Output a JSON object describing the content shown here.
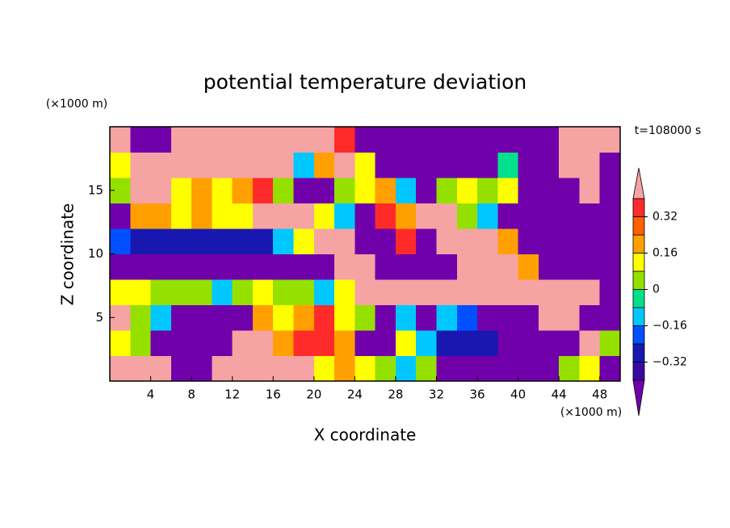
{
  "chart_data": {
    "type": "contour",
    "title": "potential temperature deviation",
    "xlabel": "X coordinate",
    "ylabel": "Z coordinate",
    "x_unit": "(×1000 m)",
    "y_unit": "(×1000 m)",
    "annotation": "t=108000 s",
    "xlim": [
      0,
      50
    ],
    "ylim": [
      0,
      20
    ],
    "xticks": [
      4,
      8,
      12,
      16,
      20,
      24,
      28,
      32,
      36,
      40,
      44,
      48
    ],
    "yticks": [
      5,
      10,
      15
    ],
    "x": [
      1,
      3,
      5,
      7,
      9,
      11,
      13,
      15,
      17,
      19,
      21,
      23,
      25,
      27,
      29,
      31,
      33,
      35,
      37,
      39,
      41,
      43,
      45,
      47,
      49
    ],
    "y": [
      1,
      3,
      5,
      7,
      9,
      11,
      13,
      15,
      17,
      19
    ],
    "values": [
      [
        0.5,
        0.5,
        0.5,
        -0.5,
        -0.5,
        0.5,
        0.5,
        0.5,
        0.5,
        0.5,
        0.12,
        0.2,
        0.12,
        0.04,
        -0.12,
        0.04,
        -0.5,
        -0.5,
        -0.5,
        -0.5,
        -0.5,
        -0.5,
        0.04,
        0.12,
        -0.5
      ],
      [
        0.12,
        0.04,
        -0.5,
        -0.5,
        -0.5,
        -0.5,
        0.5,
        0.5,
        0.2,
        0.36,
        0.36,
        0.2,
        -0.5,
        -0.5,
        0.12,
        -0.12,
        -0.28,
        -0.28,
        -0.28,
        -0.5,
        -0.5,
        -0.5,
        -0.5,
        0.5,
        0.04
      ],
      [
        0.5,
        0.04,
        -0.12,
        -0.5,
        -0.5,
        -0.5,
        -0.5,
        0.2,
        0.12,
        0.2,
        0.36,
        0.12,
        0.04,
        -0.5,
        -0.12,
        -0.5,
        -0.12,
        -0.2,
        -0.5,
        -0.5,
        -0.5,
        0.5,
        0.5,
        -0.5,
        -0.5
      ],
      [
        0.12,
        0.12,
        0.04,
        0.04,
        0.04,
        -0.12,
        0.04,
        0.12,
        0.04,
        0.04,
        -0.12,
        0.12,
        0.5,
        0.5,
        0.5,
        0.5,
        0.5,
        0.5,
        0.5,
        0.5,
        0.5,
        0.5,
        0.5,
        0.5,
        -0.5
      ],
      [
        -0.5,
        -0.5,
        -0.5,
        -0.5,
        -0.5,
        -0.5,
        -0.5,
        -0.5,
        -0.5,
        -0.5,
        -0.5,
        0.5,
        0.5,
        -0.5,
        -0.5,
        -0.5,
        -0.5,
        0.5,
        0.5,
        0.5,
        0.2,
        -0.5,
        -0.5,
        -0.5,
        -0.5
      ],
      [
        -0.2,
        -0.28,
        -0.28,
        -0.28,
        -0.28,
        -0.28,
        -0.28,
        -0.28,
        -0.12,
        0.12,
        0.5,
        0.5,
        -0.5,
        -0.5,
        0.36,
        -0.5,
        0.5,
        0.5,
        0.5,
        0.2,
        -0.5,
        -0.5,
        -0.5,
        -0.5,
        -0.5
      ],
      [
        -0.5,
        0.2,
        0.2,
        0.12,
        0.2,
        0.12,
        0.12,
        0.5,
        0.5,
        0.5,
        0.12,
        -0.12,
        -0.5,
        0.36,
        0.2,
        0.5,
        0.5,
        0.04,
        -0.12,
        -0.5,
        -0.5,
        -0.5,
        -0.5,
        -0.5,
        -0.5
      ],
      [
        0.04,
        0.5,
        0.5,
        0.12,
        0.2,
        0.12,
        0.2,
        0.36,
        0.04,
        -0.5,
        -0.5,
        0.04,
        0.12,
        0.2,
        -0.12,
        -0.5,
        0.04,
        0.12,
        0.04,
        0.12,
        -0.5,
        -0.5,
        -0.5,
        0.5,
        -0.5
      ],
      [
        0.12,
        0.5,
        0.5,
        0.5,
        0.5,
        0.5,
        0.5,
        0.5,
        0.5,
        -0.12,
        0.2,
        0.5,
        0.12,
        -0.5,
        -0.5,
        -0.5,
        -0.5,
        -0.5,
        -0.5,
        -0.04,
        -0.5,
        -0.5,
        0.5,
        0.5,
        -0.5
      ],
      [
        0.5,
        -0.5,
        -0.5,
        0.5,
        0.5,
        0.5,
        0.5,
        0.5,
        0.5,
        0.5,
        0.5,
        0.36,
        -0.5,
        -0.5,
        -0.5,
        -0.5,
        -0.5,
        -0.5,
        -0.5,
        -0.5,
        -0.5,
        -0.5,
        0.5,
        0.5,
        0.5
      ]
    ],
    "levels": [
      -0.4,
      -0.32,
      -0.24,
      -0.16,
      -0.08,
      0,
      0.08,
      0.16,
      0.24,
      0.32,
      0.4
    ],
    "colors": [
      "#7000aa",
      "#3a0aa0",
      "#1818b0",
      "#0050ff",
      "#00c8ff",
      "#00e08c",
      "#96e000",
      "#ffff00",
      "#ffa000",
      "#ff6000",
      "#ff2a2a",
      "#f5a3a3"
    ],
    "cticks": [
      0.32,
      0.16,
      0,
      {
        "value": -0.16,
        "label": "−0.16"
      },
      {
        "value": -0.32,
        "label": "−0.32"
      }
    ]
  }
}
